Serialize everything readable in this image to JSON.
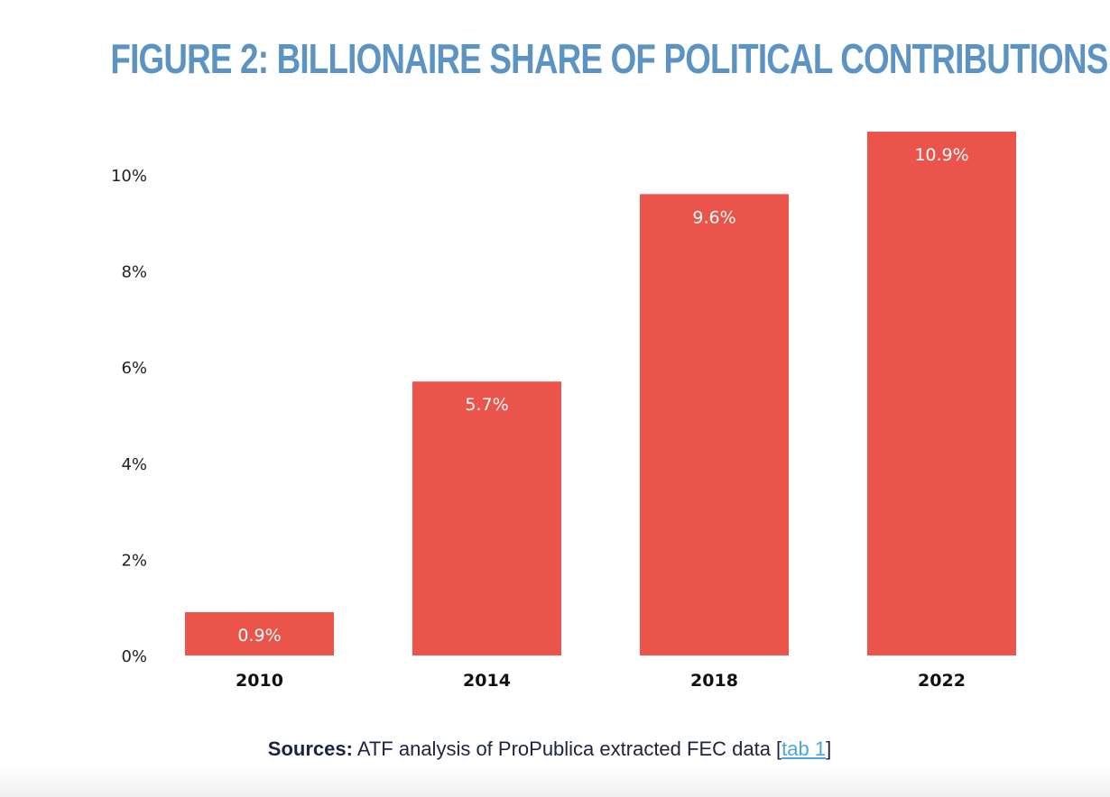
{
  "title": "FIGURE 2: BILLIONAIRE SHARE OF POLITICAL CONTRIBUTIONS",
  "source": {
    "label": "Sources:",
    "text": " ATF analysis of ProPublica extracted FEC data [",
    "link": "tab 1",
    "close": "]"
  },
  "colors": {
    "title": "#5b93c2",
    "bar": "#ea544a",
    "link": "#4aa6dd"
  },
  "chart_data": {
    "type": "bar",
    "title": "FIGURE 2: BILLIONAIRE SHARE OF POLITICAL CONTRIBUTIONS",
    "xlabel": "",
    "ylabel": "",
    "categories": [
      "2010",
      "2014",
      "2018",
      "2022"
    ],
    "values": [
      0.9,
      5.7,
      9.6,
      10.9
    ],
    "value_labels": [
      "0.9%",
      "5.7%",
      "9.6%",
      "10.9%"
    ],
    "ylim": [
      0,
      10.9
    ],
    "yticks": [
      0,
      2,
      4,
      6,
      8,
      10
    ],
    "ytick_labels": [
      "0%",
      "2%",
      "4%",
      "6%",
      "8%",
      "10%"
    ],
    "grid": false,
    "legend": "none",
    "unit": "%"
  }
}
